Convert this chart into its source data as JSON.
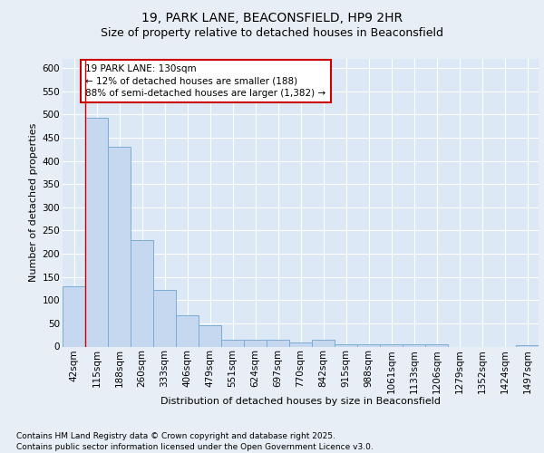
{
  "title_line1": "19, PARK LANE, BEACONSFIELD, HP9 2HR",
  "title_line2": "Size of property relative to detached houses in Beaconsfield",
  "xlabel": "Distribution of detached houses by size in Beaconsfield",
  "ylabel": "Number of detached properties",
  "categories": [
    "42sqm",
    "115sqm",
    "188sqm",
    "260sqm",
    "333sqm",
    "406sqm",
    "479sqm",
    "551sqm",
    "624sqm",
    "697sqm",
    "770sqm",
    "842sqm",
    "915sqm",
    "988sqm",
    "1061sqm",
    "1133sqm",
    "1206sqm",
    "1279sqm",
    "1352sqm",
    "1424sqm",
    "1497sqm"
  ],
  "values": [
    130,
    493,
    430,
    230,
    123,
    68,
    45,
    15,
    15,
    15,
    8,
    15,
    5,
    5,
    5,
    5,
    5,
    0,
    0,
    0,
    2
  ],
  "bar_color": "#c5d8ef",
  "bar_edge_color": "#7aadd4",
  "vline_x": 1,
  "vline_color": "#cc0000",
  "ylim": [
    0,
    620
  ],
  "yticks": [
    0,
    50,
    100,
    150,
    200,
    250,
    300,
    350,
    400,
    450,
    500,
    550,
    600
  ],
  "annotation_text": "19 PARK LANE: 130sqm\n← 12% of detached houses are smaller (188)\n88% of semi-detached houses are larger (1,382) →",
  "annotation_box_color": "#ffffff",
  "annotation_box_edge_color": "#cc0000",
  "bg_color": "#e8eef5",
  "plot_bg_color": "#dce8f5",
  "footer_line1": "Contains HM Land Registry data © Crown copyright and database right 2025.",
  "footer_line2": "Contains public sector information licensed under the Open Government Licence v3.0.",
  "title_fontsize": 10,
  "subtitle_fontsize": 9,
  "axis_label_fontsize": 8,
  "tick_fontsize": 7.5,
  "annotation_fontsize": 7.5,
  "footer_fontsize": 6.5
}
